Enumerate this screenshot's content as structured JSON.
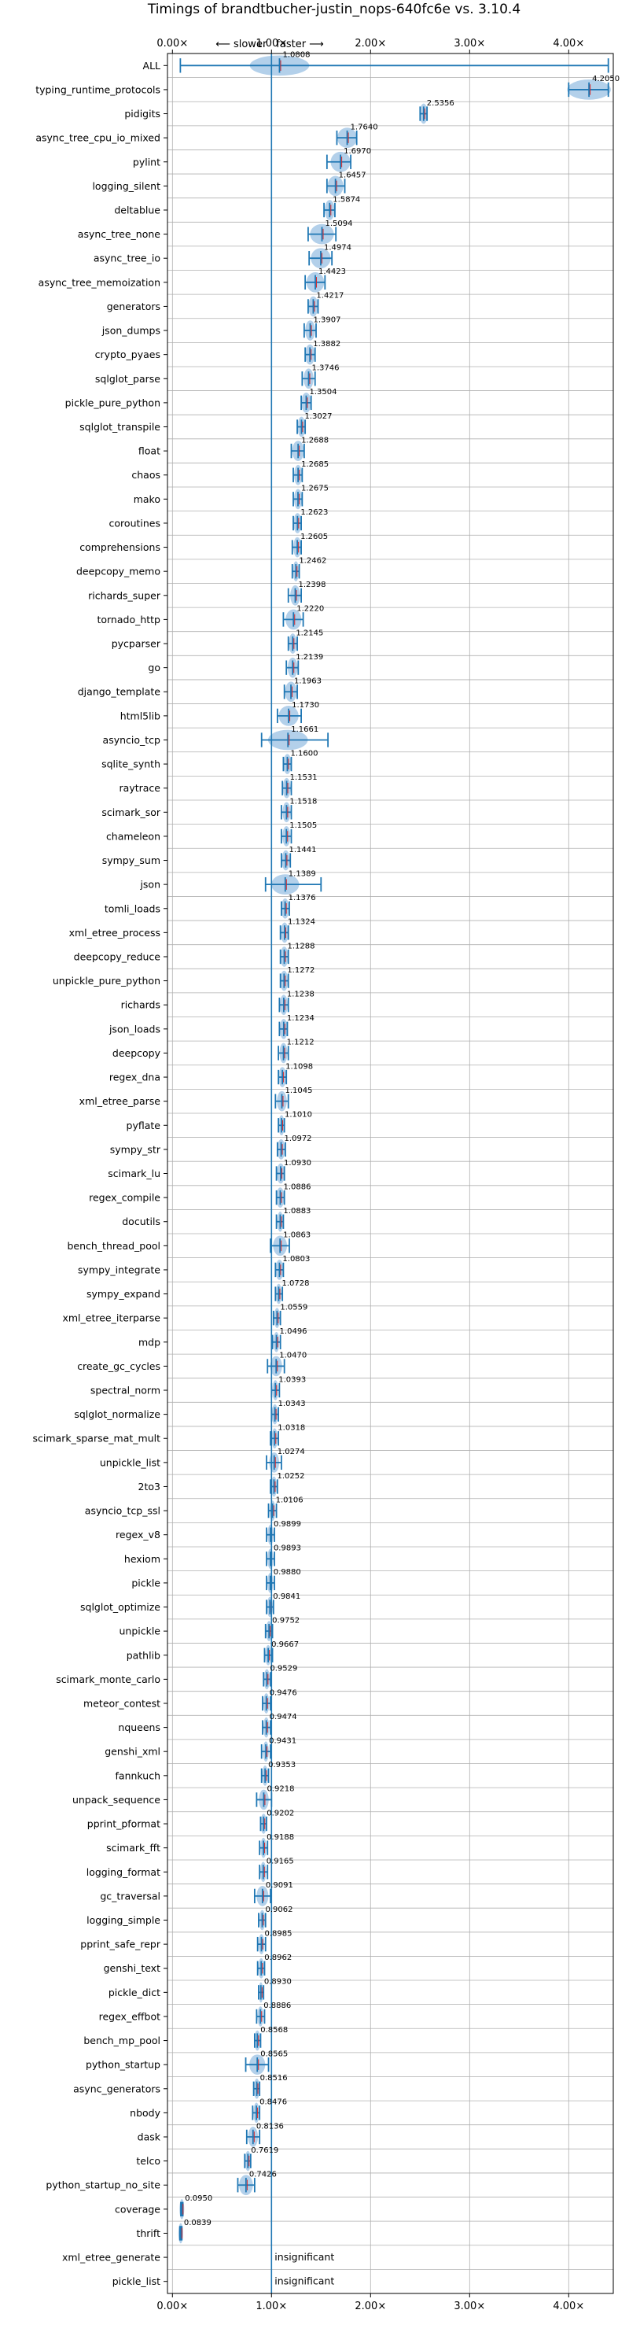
{
  "chart_data": {
    "type": "violin",
    "title": "Timings of brandtbucher-justin_nops-640fc6e vs. 3.10.4",
    "xlabel": "",
    "ylabel": "",
    "xlim": [
      -0.05,
      4.45
    ],
    "xticks": [
      0,
      1,
      2,
      3,
      4
    ],
    "xtick_labels": [
      "0.00×",
      "1.00×",
      "2.00×",
      "3.00×",
      "4.00×"
    ],
    "direction_labels": {
      "slower": "⟵ slower",
      "faster": "faster ⟶"
    },
    "grid": true,
    "reference_line": 1.0,
    "colors": {
      "line": "#1f77b4",
      "violin": "#a6c8e6",
      "median": "#d62728",
      "grid": "#b0b0b0"
    },
    "benchmarks": [
      {
        "name": "ALL",
        "value": 1.0808,
        "label": "1.0808",
        "low": 0.08,
        "high": 4.4,
        "spread": 0.3
      },
      {
        "name": "typing_runtime_protocols",
        "value": 4.205,
        "label": "4.2050",
        "low": 4.0,
        "high": 4.4,
        "spread": 0.22
      },
      {
        "name": "pidigits",
        "value": 2.5356,
        "label": "2.5356",
        "low": 2.5,
        "high": 2.57,
        "spread": 0.04
      },
      {
        "name": "async_tree_cpu_io_mixed",
        "value": 1.764,
        "label": "1.7640",
        "low": 1.66,
        "high": 1.86,
        "spread": 0.1
      },
      {
        "name": "pylint",
        "value": 1.697,
        "label": "1.6970",
        "low": 1.56,
        "high": 1.8,
        "spread": 0.1
      },
      {
        "name": "logging_silent",
        "value": 1.6457,
        "label": "1.6457",
        "low": 1.56,
        "high": 1.74,
        "spread": 0.08
      },
      {
        "name": "deltablue",
        "value": 1.5874,
        "label": "1.5874",
        "low": 1.53,
        "high": 1.64,
        "spread": 0.05
      },
      {
        "name": "async_tree_none",
        "value": 1.5094,
        "label": "1.5094",
        "low": 1.37,
        "high": 1.65,
        "spread": 0.12
      },
      {
        "name": "async_tree_io",
        "value": 1.4974,
        "label": "1.4974",
        "low": 1.38,
        "high": 1.61,
        "spread": 0.1
      },
      {
        "name": "async_tree_memoization",
        "value": 1.4423,
        "label": "1.4423",
        "low": 1.34,
        "high": 1.54,
        "spread": 0.09
      },
      {
        "name": "generators",
        "value": 1.4217,
        "label": "1.4217",
        "low": 1.37,
        "high": 1.47,
        "spread": 0.05
      },
      {
        "name": "json_dumps",
        "value": 1.3907,
        "label": "1.3907",
        "low": 1.33,
        "high": 1.45,
        "spread": 0.05
      },
      {
        "name": "crypto_pyaes",
        "value": 1.3882,
        "label": "1.3882",
        "low": 1.34,
        "high": 1.44,
        "spread": 0.05
      },
      {
        "name": "sqlglot_parse",
        "value": 1.3746,
        "label": "1.3746",
        "low": 1.31,
        "high": 1.44,
        "spread": 0.05
      },
      {
        "name": "pickle_pure_python",
        "value": 1.3504,
        "label": "1.3504",
        "low": 1.3,
        "high": 1.4,
        "spread": 0.05
      },
      {
        "name": "sqlglot_transpile",
        "value": 1.3027,
        "label": "1.3027",
        "low": 1.26,
        "high": 1.34,
        "spread": 0.04
      },
      {
        "name": "float",
        "value": 1.2688,
        "label": "1.2688",
        "low": 1.2,
        "high": 1.33,
        "spread": 0.06
      },
      {
        "name": "chaos",
        "value": 1.2685,
        "label": "1.2685",
        "low": 1.22,
        "high": 1.31,
        "spread": 0.04
      },
      {
        "name": "mako",
        "value": 1.2675,
        "label": "1.2675",
        "low": 1.22,
        "high": 1.31,
        "spread": 0.04
      },
      {
        "name": "coroutines",
        "value": 1.2623,
        "label": "1.2623",
        "low": 1.22,
        "high": 1.3,
        "spread": 0.04
      },
      {
        "name": "comprehensions",
        "value": 1.2605,
        "label": "1.2605",
        "low": 1.21,
        "high": 1.3,
        "spread": 0.04
      },
      {
        "name": "deepcopy_memo",
        "value": 1.2462,
        "label": "1.2462",
        "low": 1.21,
        "high": 1.28,
        "spread": 0.03
      },
      {
        "name": "richards_super",
        "value": 1.2398,
        "label": "1.2398",
        "low": 1.17,
        "high": 1.3,
        "spread": 0.05
      },
      {
        "name": "tornado_http",
        "value": 1.222,
        "label": "1.2220",
        "low": 1.12,
        "high": 1.32,
        "spread": 0.08
      },
      {
        "name": "pycparser",
        "value": 1.2145,
        "label": "1.2145",
        "low": 1.17,
        "high": 1.26,
        "spread": 0.04
      },
      {
        "name": "go",
        "value": 1.2139,
        "label": "1.2139",
        "low": 1.15,
        "high": 1.27,
        "spread": 0.05
      },
      {
        "name": "django_template",
        "value": 1.1963,
        "label": "1.1963",
        "low": 1.13,
        "high": 1.26,
        "spread": 0.06
      },
      {
        "name": "html5lib",
        "value": 1.173,
        "label": "1.1730",
        "low": 1.06,
        "high": 1.3,
        "spread": 0.1
      },
      {
        "name": "asyncio_tcp",
        "value": 1.1661,
        "label": "1.1661",
        "low": 0.9,
        "high": 1.57,
        "spread": 0.2
      },
      {
        "name": "sqlite_synth",
        "value": 1.16,
        "label": "1.1600",
        "low": 1.12,
        "high": 1.2,
        "spread": 0.04
      },
      {
        "name": "raytrace",
        "value": 1.1531,
        "label": "1.1531",
        "low": 1.11,
        "high": 1.2,
        "spread": 0.04
      },
      {
        "name": "scimark_sor",
        "value": 1.1518,
        "label": "1.1518",
        "low": 1.1,
        "high": 1.2,
        "spread": 0.04
      },
      {
        "name": "chameleon",
        "value": 1.1505,
        "label": "1.1505",
        "low": 1.1,
        "high": 1.2,
        "spread": 0.04
      },
      {
        "name": "sympy_sum",
        "value": 1.1441,
        "label": "1.1441",
        "low": 1.1,
        "high": 1.19,
        "spread": 0.04
      },
      {
        "name": "json",
        "value": 1.1389,
        "label": "1.1389",
        "low": 0.94,
        "high": 1.5,
        "spread": 0.14
      },
      {
        "name": "tomli_loads",
        "value": 1.1376,
        "label": "1.1376",
        "low": 1.1,
        "high": 1.18,
        "spread": 0.04
      },
      {
        "name": "xml_etree_process",
        "value": 1.1324,
        "label": "1.1324",
        "low": 1.09,
        "high": 1.17,
        "spread": 0.04
      },
      {
        "name": "deepcopy_reduce",
        "value": 1.1288,
        "label": "1.1288",
        "low": 1.09,
        "high": 1.17,
        "spread": 0.04
      },
      {
        "name": "unpickle_pure_python",
        "value": 1.1272,
        "label": "1.1272",
        "low": 1.09,
        "high": 1.17,
        "spread": 0.04
      },
      {
        "name": "richards",
        "value": 1.1238,
        "label": "1.1238",
        "low": 1.08,
        "high": 1.17,
        "spread": 0.04
      },
      {
        "name": "json_loads",
        "value": 1.1234,
        "label": "1.1234",
        "low": 1.08,
        "high": 1.16,
        "spread": 0.04
      },
      {
        "name": "deepcopy",
        "value": 1.1212,
        "label": "1.1212",
        "low": 1.07,
        "high": 1.17,
        "spread": 0.04
      },
      {
        "name": "regex_dna",
        "value": 1.1098,
        "label": "1.1098",
        "low": 1.07,
        "high": 1.15,
        "spread": 0.04
      },
      {
        "name": "xml_etree_parse",
        "value": 1.1045,
        "label": "1.1045",
        "low": 1.04,
        "high": 1.17,
        "spread": 0.05
      },
      {
        "name": "pyflate",
        "value": 1.101,
        "label": "1.1010",
        "low": 1.07,
        "high": 1.13,
        "spread": 0.03
      },
      {
        "name": "sympy_str",
        "value": 1.0972,
        "label": "1.0972",
        "low": 1.06,
        "high": 1.14,
        "spread": 0.04
      },
      {
        "name": "scimark_lu",
        "value": 1.093,
        "label": "1.0930",
        "low": 1.05,
        "high": 1.13,
        "spread": 0.04
      },
      {
        "name": "regex_compile",
        "value": 1.0886,
        "label": "1.0886",
        "low": 1.05,
        "high": 1.13,
        "spread": 0.04
      },
      {
        "name": "docutils",
        "value": 1.0883,
        "label": "1.0883",
        "low": 1.05,
        "high": 1.12,
        "spread": 0.03
      },
      {
        "name": "bench_thread_pool",
        "value": 1.0863,
        "label": "1.0863",
        "low": 0.99,
        "high": 1.18,
        "spread": 0.07
      },
      {
        "name": "sympy_integrate",
        "value": 1.0803,
        "label": "1.0803",
        "low": 1.04,
        "high": 1.12,
        "spread": 0.04
      },
      {
        "name": "sympy_expand",
        "value": 1.0728,
        "label": "1.0728",
        "low": 1.04,
        "high": 1.11,
        "spread": 0.03
      },
      {
        "name": "xml_etree_iterparse",
        "value": 1.0559,
        "label": "1.0559",
        "low": 1.02,
        "high": 1.09,
        "spread": 0.03
      },
      {
        "name": "mdp",
        "value": 1.0496,
        "label": "1.0496",
        "low": 1.01,
        "high": 1.09,
        "spread": 0.03
      },
      {
        "name": "create_gc_cycles",
        "value": 1.047,
        "label": "1.0470",
        "low": 0.96,
        "high": 1.13,
        "spread": 0.06
      },
      {
        "name": "spectral_norm",
        "value": 1.0393,
        "label": "1.0393",
        "low": 1.0,
        "high": 1.08,
        "spread": 0.03
      },
      {
        "name": "sqlglot_normalize",
        "value": 1.0343,
        "label": "1.0343",
        "low": 1.0,
        "high": 1.07,
        "spread": 0.03
      },
      {
        "name": "scimark_sparse_mat_mult",
        "value": 1.0318,
        "label": "1.0318",
        "low": 0.99,
        "high": 1.07,
        "spread": 0.03
      },
      {
        "name": "unpickle_list",
        "value": 1.0274,
        "label": "1.0274",
        "low": 0.95,
        "high": 1.1,
        "spread": 0.05
      },
      {
        "name": "2to3",
        "value": 1.0252,
        "label": "1.0252",
        "low": 0.99,
        "high": 1.06,
        "spread": 0.03
      },
      {
        "name": "asyncio_tcp_ssl",
        "value": 1.0106,
        "label": "1.0106",
        "low": 0.97,
        "high": 1.05,
        "spread": 0.03
      },
      {
        "name": "regex_v8",
        "value": 0.9899,
        "label": "0.9899",
        "low": 0.95,
        "high": 1.03,
        "spread": 0.03
      },
      {
        "name": "hexiom",
        "value": 0.9893,
        "label": "0.9893",
        "low": 0.95,
        "high": 1.03,
        "spread": 0.03
      },
      {
        "name": "pickle",
        "value": 0.988,
        "label": "0.9880",
        "low": 0.95,
        "high": 1.03,
        "spread": 0.03
      },
      {
        "name": "sqlglot_optimize",
        "value": 0.9841,
        "label": "0.9841",
        "low": 0.95,
        "high": 1.02,
        "spread": 0.03
      },
      {
        "name": "unpickle",
        "value": 0.9752,
        "label": "0.9752",
        "low": 0.94,
        "high": 1.01,
        "spread": 0.03
      },
      {
        "name": "pathlib",
        "value": 0.9667,
        "label": "0.9667",
        "low": 0.93,
        "high": 1.01,
        "spread": 0.03
      },
      {
        "name": "scimark_monte_carlo",
        "value": 0.9529,
        "label": "0.9529",
        "low": 0.92,
        "high": 0.99,
        "spread": 0.03
      },
      {
        "name": "meteor_contest",
        "value": 0.9476,
        "label": "0.9476",
        "low": 0.91,
        "high": 0.99,
        "spread": 0.03
      },
      {
        "name": "nqueens",
        "value": 0.9474,
        "label": "0.9474",
        "low": 0.91,
        "high": 0.99,
        "spread": 0.03
      },
      {
        "name": "genshi_xml",
        "value": 0.9431,
        "label": "0.9431",
        "low": 0.9,
        "high": 0.99,
        "spread": 0.03
      },
      {
        "name": "fannkuch",
        "value": 0.9353,
        "label": "0.9353",
        "low": 0.9,
        "high": 0.97,
        "spread": 0.03
      },
      {
        "name": "unpack_sequence",
        "value": 0.9218,
        "label": "0.9218",
        "low": 0.85,
        "high": 1.0,
        "spread": 0.05
      },
      {
        "name": "pprint_pformat",
        "value": 0.9202,
        "label": "0.9202",
        "low": 0.89,
        "high": 0.95,
        "spread": 0.03
      },
      {
        "name": "scimark_fft",
        "value": 0.9188,
        "label": "0.9188",
        "low": 0.88,
        "high": 0.96,
        "spread": 0.03
      },
      {
        "name": "logging_format",
        "value": 0.9165,
        "label": "0.9165",
        "low": 0.88,
        "high": 0.96,
        "spread": 0.03
      },
      {
        "name": "gc_traversal",
        "value": 0.9091,
        "label": "0.9091",
        "low": 0.83,
        "high": 0.99,
        "spread": 0.06
      },
      {
        "name": "logging_simple",
        "value": 0.9062,
        "label": "0.9062",
        "low": 0.87,
        "high": 0.94,
        "spread": 0.03
      },
      {
        "name": "pprint_safe_repr",
        "value": 0.8985,
        "label": "0.8985",
        "low": 0.86,
        "high": 0.94,
        "spread": 0.03
      },
      {
        "name": "genshi_text",
        "value": 0.8962,
        "label": "0.8962",
        "low": 0.86,
        "high": 0.93,
        "spread": 0.03
      },
      {
        "name": "pickle_dict",
        "value": 0.893,
        "label": "0.8930",
        "low": 0.87,
        "high": 0.92,
        "spread": 0.02
      },
      {
        "name": "regex_effbot",
        "value": 0.8886,
        "label": "0.8886",
        "low": 0.85,
        "high": 0.93,
        "spread": 0.03
      },
      {
        "name": "bench_mp_pool",
        "value": 0.8568,
        "label": "0.8568",
        "low": 0.83,
        "high": 0.89,
        "spread": 0.03
      },
      {
        "name": "python_startup",
        "value": 0.8565,
        "label": "0.8565",
        "low": 0.74,
        "high": 0.97,
        "spread": 0.08
      },
      {
        "name": "async_generators",
        "value": 0.8516,
        "label": "0.8516",
        "low": 0.82,
        "high": 0.88,
        "spread": 0.03
      },
      {
        "name": "nbody",
        "value": 0.8476,
        "label": "0.8476",
        "low": 0.81,
        "high": 0.88,
        "spread": 0.03
      },
      {
        "name": "dask",
        "value": 0.8136,
        "label": "0.8136",
        "low": 0.75,
        "high": 0.88,
        "spread": 0.05
      },
      {
        "name": "telco",
        "value": 0.7619,
        "label": "0.7619",
        "low": 0.73,
        "high": 0.79,
        "spread": 0.03
      },
      {
        "name": "python_startup_no_site",
        "value": 0.7426,
        "label": "0.7426",
        "low": 0.66,
        "high": 0.83,
        "spread": 0.07
      },
      {
        "name": "coverage",
        "value": 0.095,
        "label": "0.0950",
        "low": 0.085,
        "high": 0.105,
        "spread": 0.01
      },
      {
        "name": "thrift",
        "value": 0.0839,
        "label": "0.0839",
        "low": 0.075,
        "high": 0.095,
        "spread": 0.01
      },
      {
        "name": "xml_etree_generate",
        "value": null,
        "label": "insignificant"
      },
      {
        "name": "pickle_list",
        "value": null,
        "label": "insignificant"
      }
    ]
  }
}
